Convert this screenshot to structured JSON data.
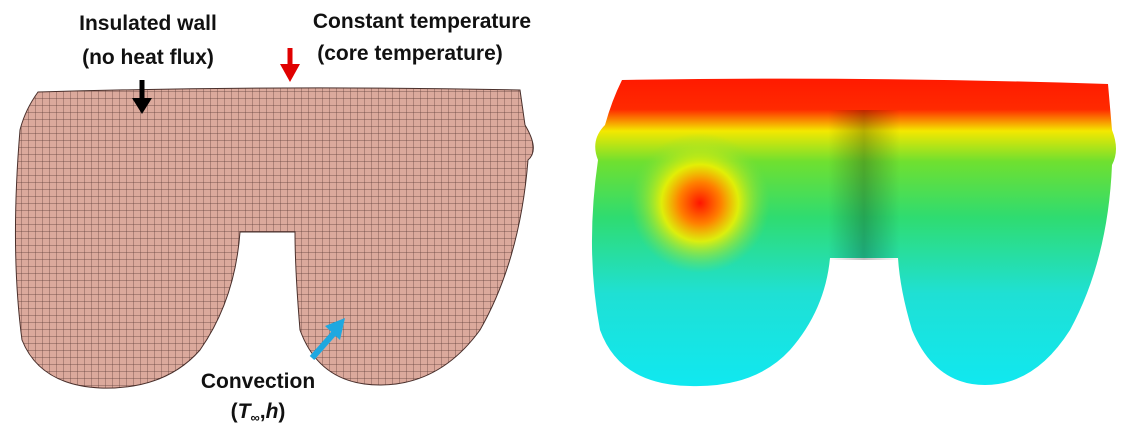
{
  "labels": {
    "insulated": {
      "line1": "Insulated wall",
      "line2": "(no heat flux)"
    },
    "constant": {
      "line1": "Constant temperature",
      "line2": "(core temperature)"
    },
    "convection": {
      "line1": "Convection",
      "open": "(",
      "symbol": "T",
      "subscript": "∞",
      "separator": ",",
      "coefficient": "h",
      "close": ")"
    }
  }
}
